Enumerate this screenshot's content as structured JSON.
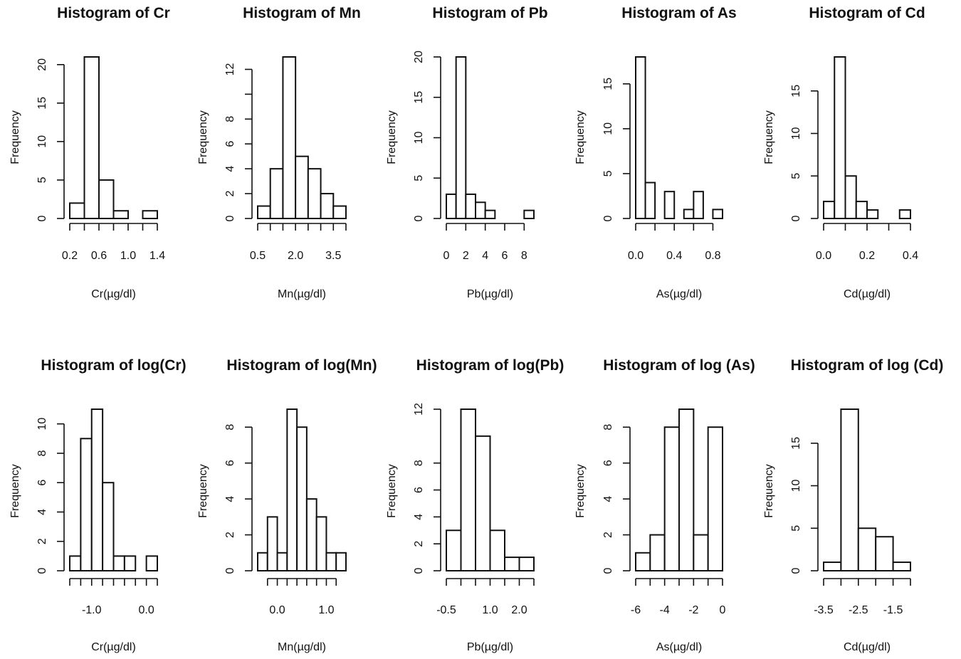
{
  "chart_data": [
    {
      "type": "bar",
      "title": "Histogram of Cr",
      "xlabel": "Cr(µg/dl)",
      "ylabel": "Frequency",
      "bins": [
        [
          0.2,
          0.4
        ],
        [
          0.4,
          0.6
        ],
        [
          0.6,
          0.8
        ],
        [
          0.8,
          1.0
        ],
        [
          1.0,
          1.2
        ],
        [
          1.2,
          1.4
        ]
      ],
      "values": [
        2,
        21,
        5,
        1,
        0,
        1
      ],
      "xlim": [
        0.2,
        1.4
      ],
      "ylim": [
        0,
        21
      ],
      "xticks": [
        0.2,
        0.4,
        0.6,
        0.8,
        1.0,
        1.2,
        1.4
      ],
      "xtick_labels": [
        {
          "v": 0.2,
          "t": "0.2"
        },
        {
          "v": 0.6,
          "t": "0.6"
        },
        {
          "v": 1.0,
          "t": "1.0"
        },
        {
          "v": 1.4,
          "t": "1.4"
        }
      ],
      "yticks": [
        0,
        5,
        10,
        15,
        20
      ],
      "ytick_labels": [
        {
          "v": 0,
          "t": "0"
        },
        {
          "v": 5,
          "t": "5"
        },
        {
          "v": 10,
          "t": "10"
        },
        {
          "v": 15,
          "t": "15"
        },
        {
          "v": 20,
          "t": "20"
        }
      ]
    },
    {
      "type": "bar",
      "title": "Histogram of Mn",
      "xlabel": "Mn(µg/dl)",
      "ylabel": "Frequency",
      "bins": [
        [
          0.5,
          1.0
        ],
        [
          1.0,
          1.5
        ],
        [
          1.5,
          2.0
        ],
        [
          2.0,
          2.5
        ],
        [
          2.5,
          3.0
        ],
        [
          3.0,
          3.5
        ],
        [
          3.5,
          4.0
        ]
      ],
      "values": [
        1,
        4,
        13,
        5,
        4,
        2,
        1
      ],
      "xlim": [
        0.5,
        4.0
      ],
      "ylim": [
        0,
        13
      ],
      "xticks": [
        0.5,
        1.0,
        1.5,
        2.0,
        2.5,
        3.0,
        3.5,
        4.0
      ],
      "xtick_labels": [
        {
          "v": 0.5,
          "t": "0.5"
        },
        {
          "v": 2.0,
          "t": "2.0"
        },
        {
          "v": 3.5,
          "t": "3.5"
        }
      ],
      "yticks": [
        0,
        2,
        4,
        6,
        8,
        10,
        12
      ],
      "ytick_labels": [
        {
          "v": 0,
          "t": "0"
        },
        {
          "v": 2,
          "t": "2"
        },
        {
          "v": 4,
          "t": "4"
        },
        {
          "v": 6,
          "t": "6"
        },
        {
          "v": 8,
          "t": "8"
        },
        {
          "v": 12,
          "t": "12"
        }
      ]
    },
    {
      "type": "bar",
      "title": "Histogram of Pb",
      "xlabel": "Pb(µg/dl)",
      "ylabel": "Frequency",
      "bins": [
        [
          0,
          1
        ],
        [
          1,
          2
        ],
        [
          2,
          3
        ],
        [
          3,
          4
        ],
        [
          4,
          5
        ],
        [
          5,
          6
        ],
        [
          6,
          7
        ],
        [
          7,
          8
        ],
        [
          8,
          9
        ]
      ],
      "values": [
        3,
        20,
        3,
        2,
        1,
        0,
        0,
        0,
        1
      ],
      "xlim": [
        0,
        9
      ],
      "ylim": [
        0,
        20
      ],
      "xticks": [
        0,
        2,
        4,
        6,
        8
      ],
      "xtick_labels": [
        {
          "v": 0,
          "t": "0"
        },
        {
          "v": 2,
          "t": "2"
        },
        {
          "v": 4,
          "t": "4"
        },
        {
          "v": 6,
          "t": "6"
        },
        {
          "v": 8,
          "t": "8"
        }
      ],
      "yticks": [
        0,
        5,
        10,
        15,
        20
      ],
      "ytick_labels": [
        {
          "v": 0,
          "t": "0"
        },
        {
          "v": 5,
          "t": "5"
        },
        {
          "v": 10,
          "t": "10"
        },
        {
          "v": 15,
          "t": "15"
        },
        {
          "v": 20,
          "t": "20"
        }
      ]
    },
    {
      "type": "bar",
      "title": "Histogram of As",
      "xlabel": "As(µg/dl)",
      "ylabel": "Frequency",
      "bins": [
        [
          0.0,
          0.1
        ],
        [
          0.1,
          0.2
        ],
        [
          0.2,
          0.3
        ],
        [
          0.3,
          0.4
        ],
        [
          0.4,
          0.5
        ],
        [
          0.5,
          0.6
        ],
        [
          0.6,
          0.7
        ],
        [
          0.7,
          0.8
        ],
        [
          0.8,
          0.9
        ]
      ],
      "values": [
        18,
        4,
        0,
        3,
        0,
        1,
        3,
        0,
        1
      ],
      "xlim": [
        0.0,
        0.9
      ],
      "ylim": [
        0,
        18
      ],
      "xticks": [
        0.0,
        0.2,
        0.4,
        0.6,
        0.8
      ],
      "xtick_labels": [
        {
          "v": 0.0,
          "t": "0.0"
        },
        {
          "v": 0.4,
          "t": "0.4"
        },
        {
          "v": 0.8,
          "t": "0.8"
        }
      ],
      "yticks": [
        0,
        5,
        10,
        15
      ],
      "ytick_labels": [
        {
          "v": 0,
          "t": "0"
        },
        {
          "v": 5,
          "t": "5"
        },
        {
          "v": 10,
          "t": "10"
        },
        {
          "v": 15,
          "t": "15"
        }
      ]
    },
    {
      "type": "bar",
      "title": "Histogram of Cd",
      "xlabel": "Cd(µg/dl)",
      "ylabel": "Frequency",
      "bins": [
        [
          0.0,
          0.05
        ],
        [
          0.05,
          0.1
        ],
        [
          0.1,
          0.15
        ],
        [
          0.15,
          0.2
        ],
        [
          0.2,
          0.25
        ],
        [
          0.25,
          0.3
        ],
        [
          0.3,
          0.35
        ],
        [
          0.35,
          0.4
        ]
      ],
      "values": [
        2,
        19,
        5,
        2,
        1,
        0,
        0,
        1
      ],
      "xlim": [
        0.0,
        0.4
      ],
      "ylim": [
        0,
        19
      ],
      "xticks": [
        0.0,
        0.1,
        0.2,
        0.3,
        0.4
      ],
      "xtick_labels": [
        {
          "v": 0.0,
          "t": "0.0"
        },
        {
          "v": 0.2,
          "t": "0.2"
        },
        {
          "v": 0.4,
          "t": "0.4"
        }
      ],
      "yticks": [
        0,
        5,
        10,
        15
      ],
      "ytick_labels": [
        {
          "v": 0,
          "t": "0"
        },
        {
          "v": 5,
          "t": "5"
        },
        {
          "v": 10,
          "t": "10"
        },
        {
          "v": 15,
          "t": "15"
        }
      ]
    },
    {
      "type": "bar",
      "title": "Histogram of log(Cr)",
      "xlabel": "Cr(µg/dl)",
      "ylabel": "Frequency",
      "bins": [
        [
          -1.4,
          -1.2
        ],
        [
          -1.2,
          -1.0
        ],
        [
          -1.0,
          -0.8
        ],
        [
          -0.8,
          -0.6
        ],
        [
          -0.6,
          -0.4
        ],
        [
          -0.4,
          -0.2
        ],
        [
          -0.2,
          0.0
        ],
        [
          0.0,
          0.2
        ]
      ],
      "values": [
        1,
        9,
        11,
        6,
        1,
        1,
        0,
        1
      ],
      "xlim": [
        -1.4,
        0.2
      ],
      "ylim": [
        0,
        11
      ],
      "xticks": [
        -1.4,
        -1.2,
        -1.0,
        -0.8,
        -0.6,
        -0.4,
        -0.2,
        0.0,
        0.2
      ],
      "xtick_labels": [
        {
          "v": -1.0,
          "t": "-1.0"
        },
        {
          "v": 0.0,
          "t": "0.0"
        }
      ],
      "yticks": [
        0,
        2,
        4,
        6,
        8,
        10
      ],
      "ytick_labels": [
        {
          "v": 0,
          "t": "0"
        },
        {
          "v": 2,
          "t": "2"
        },
        {
          "v": 4,
          "t": "4"
        },
        {
          "v": 6,
          "t": "6"
        },
        {
          "v": 8,
          "t": "8"
        },
        {
          "v": 10,
          "t": "10"
        }
      ]
    },
    {
      "type": "bar",
      "title": "Histogram of log(Mn)",
      "xlabel": "Mn(µg/dl)",
      "ylabel": "Frequency",
      "bins": [
        [
          -0.4,
          -0.2
        ],
        [
          -0.2,
          0.0
        ],
        [
          0.0,
          0.2
        ],
        [
          0.2,
          0.4
        ],
        [
          0.4,
          0.6
        ],
        [
          0.6,
          0.8
        ],
        [
          0.8,
          1.0
        ],
        [
          1.0,
          1.2
        ],
        [
          1.2,
          1.4
        ]
      ],
      "values": [
        1,
        3,
        1,
        9,
        8,
        4,
        3,
        1,
        1
      ],
      "xlim": [
        -0.4,
        1.4
      ],
      "ylim": [
        0,
        9
      ],
      "xticks": [
        -0.2,
        0.0,
        0.2,
        0.4,
        0.6,
        0.8,
        1.0,
        1.2
      ],
      "xtick_labels": [
        {
          "v": 0.0,
          "t": "0.0"
        },
        {
          "v": 1.0,
          "t": "1.0"
        }
      ],
      "yticks": [
        0,
        2,
        4,
        6,
        8
      ],
      "ytick_labels": [
        {
          "v": 0,
          "t": "0"
        },
        {
          "v": 2,
          "t": "2"
        },
        {
          "v": 4,
          "t": "4"
        },
        {
          "v": 6,
          "t": "6"
        },
        {
          "v": 8,
          "t": "8"
        }
      ]
    },
    {
      "type": "bar",
      "title": "Histogram of log(Pb)",
      "xlabel": "Pb(µg/dl)",
      "ylabel": "Frequency",
      "bins": [
        [
          -0.5,
          0.0
        ],
        [
          0.0,
          0.5
        ],
        [
          0.5,
          1.0
        ],
        [
          1.0,
          1.5
        ],
        [
          1.5,
          2.0
        ],
        [
          2.0,
          2.5
        ]
      ],
      "values": [
        3,
        12,
        10,
        3,
        1,
        1
      ],
      "xlim": [
        -0.5,
        2.5
      ],
      "ylim": [
        0,
        12
      ],
      "xticks": [
        -0.5,
        0.0,
        0.5,
        1.0,
        1.5,
        2.0,
        2.5
      ],
      "xtick_labels": [
        {
          "v": -0.5,
          "t": "-0.5"
        },
        {
          "v": 1.0,
          "t": "1.0"
        },
        {
          "v": 2.0,
          "t": "2.0"
        }
      ],
      "yticks": [
        0,
        2,
        4,
        6,
        8,
        12
      ],
      "ytick_labels": [
        {
          "v": 0,
          "t": "0"
        },
        {
          "v": 2,
          "t": "2"
        },
        {
          "v": 4,
          "t": "4"
        },
        {
          "v": 6,
          "t": "6"
        },
        {
          "v": 8,
          "t": "8"
        },
        {
          "v": 12,
          "t": "12"
        }
      ]
    },
    {
      "type": "bar",
      "title": "Histogram of log (As)",
      "xlabel": "As(µg/dl)",
      "ylabel": "Frequency",
      "bins": [
        [
          -6,
          -5
        ],
        [
          -5,
          -4
        ],
        [
          -4,
          -3
        ],
        [
          -3,
          -2
        ],
        [
          -2,
          -1
        ],
        [
          -1,
          0
        ]
      ],
      "values": [
        1,
        2,
        8,
        9,
        2,
        8
      ],
      "xlim": [
        -6,
        0
      ],
      "ylim": [
        0,
        9
      ],
      "xticks": [
        -6,
        -5,
        -4,
        -3,
        -2,
        -1,
        0
      ],
      "xtick_labels": [
        {
          "v": -6,
          "t": "-6"
        },
        {
          "v": -4,
          "t": "-4"
        },
        {
          "v": -2,
          "t": "-2"
        },
        {
          "v": 0,
          "t": "0"
        }
      ],
      "yticks": [
        0,
        2,
        4,
        6,
        8
      ],
      "ytick_labels": [
        {
          "v": 0,
          "t": "0"
        },
        {
          "v": 2,
          "t": "2"
        },
        {
          "v": 4,
          "t": "4"
        },
        {
          "v": 6,
          "t": "6"
        },
        {
          "v": 8,
          "t": "8"
        }
      ]
    },
    {
      "type": "bar",
      "title": "Histogram of log (Cd)",
      "xlabel": "Cd(µg/dl)",
      "ylabel": "Frequency",
      "bins": [
        [
          -3.5,
          -3.0
        ],
        [
          -3.0,
          -2.5
        ],
        [
          -2.5,
          -2.0
        ],
        [
          -2.0,
          -1.5
        ],
        [
          -1.5,
          -1.0
        ]
      ],
      "values": [
        1,
        19,
        5,
        4,
        1
      ],
      "xlim": [
        -3.5,
        -1.0
      ],
      "ylim": [
        0,
        19
      ],
      "xticks": [
        -3.5,
        -3.0,
        -2.5,
        -2.0,
        -1.5,
        -1.0
      ],
      "xtick_labels": [
        {
          "v": -3.5,
          "t": "-3.5"
        },
        {
          "v": -2.5,
          "t": "-2.5"
        },
        {
          "v": -1.5,
          "t": "-1.5"
        }
      ],
      "yticks": [
        0,
        5,
        10,
        15
      ],
      "ytick_labels": [
        {
          "v": 0,
          "t": "0"
        },
        {
          "v": 5,
          "t": "5"
        },
        {
          "v": 10,
          "t": "10"
        },
        {
          "v": 15,
          "t": "15"
        }
      ]
    }
  ]
}
